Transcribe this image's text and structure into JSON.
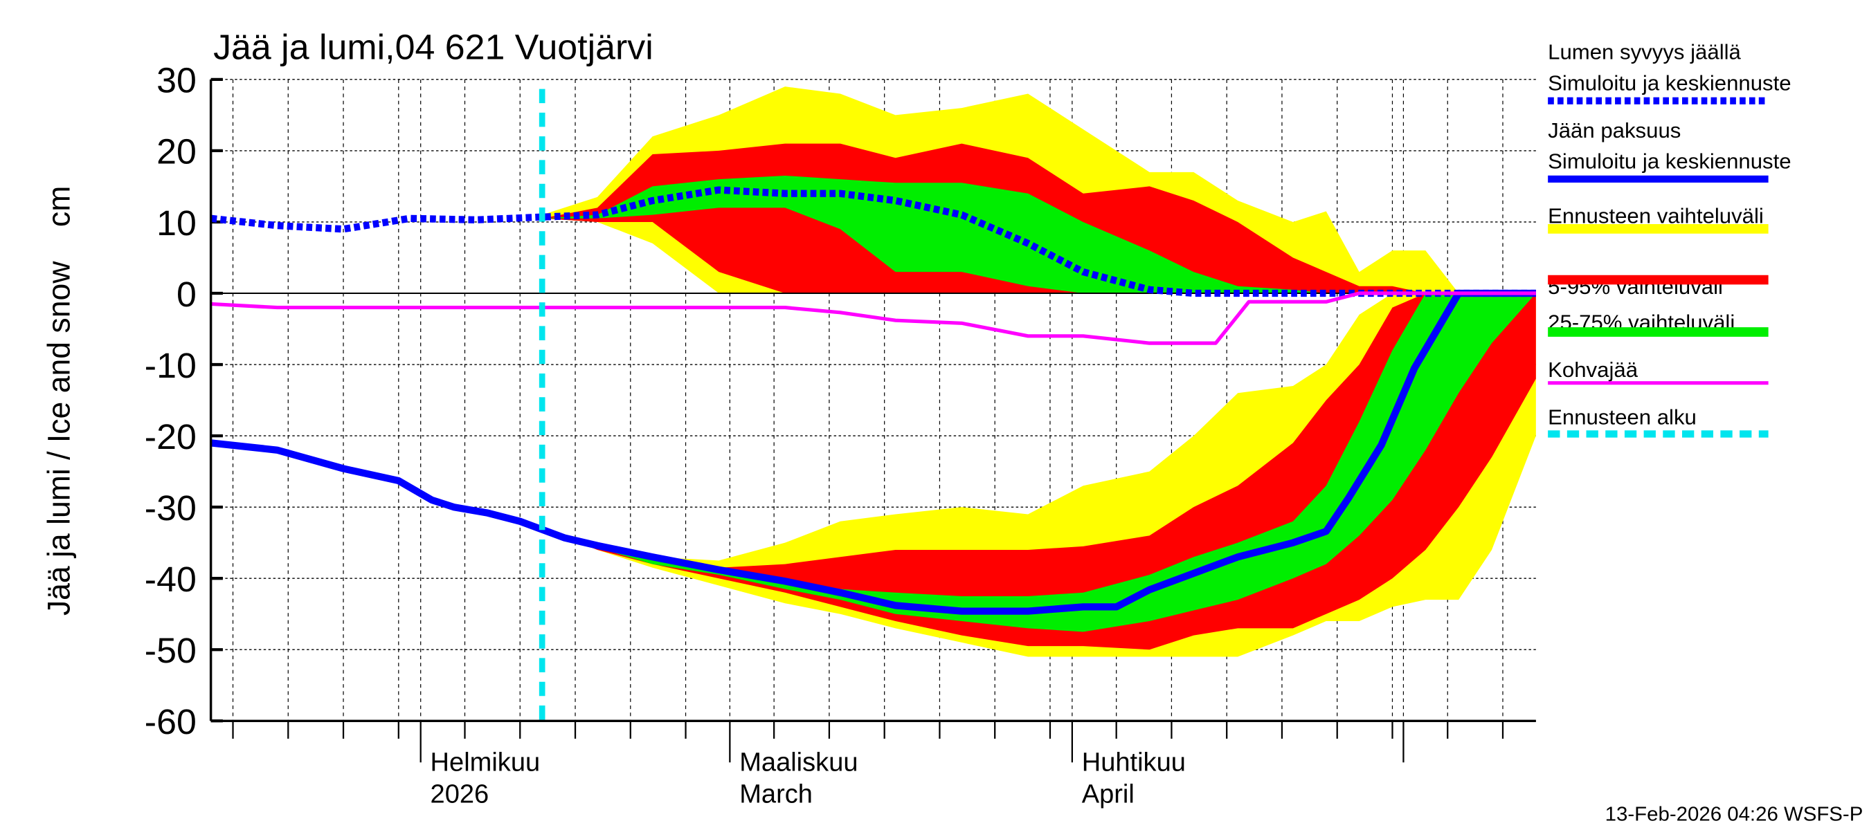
{
  "chart_data": {
    "type": "area",
    "title": "Jää ja lumi,04 621 Vuotjärvi",
    "ylabel": "Jää ja lumi / Ice and snow    cm",
    "ylim": [
      -60,
      30
    ],
    "yticks": [
      30,
      20,
      10,
      0,
      -10,
      -20,
      -30,
      -40,
      -50,
      -60
    ],
    "xlim": [
      "2026-01-13",
      "2026-05-13"
    ],
    "grid": true,
    "month_labels": [
      {
        "date": "2026-02-01",
        "line1": "Helmikuu",
        "line2": "2026"
      },
      {
        "date": "2026-03-01",
        "line1": "Maaliskuu",
        "line2": "March"
      },
      {
        "date": "2026-04-01",
        "line1": "Huhtikuu",
        "line2": "April"
      }
    ],
    "forecast_start": "2026-02-12",
    "band_dates": [
      "2026-02-12",
      "2026-02-17",
      "2026-02-22",
      "2026-02-28",
      "2026-03-06",
      "2026-03-11",
      "2026-03-16",
      "2026-03-22",
      "2026-03-28",
      "2026-04-02",
      "2026-04-08",
      "2026-04-12",
      "2026-04-16",
      "2026-04-21",
      "2026-04-24",
      "2026-04-27",
      "2026-04-30",
      "2026-05-03",
      "2026-05-06",
      "2026-05-09",
      "2026-05-13"
    ],
    "snow_bands": {
      "yellow_upper": [
        11,
        13.5,
        22,
        25,
        29,
        28,
        25,
        26,
        28,
        23,
        17,
        17,
        13,
        10,
        11.5,
        3,
        6,
        6,
        0,
        0,
        0
      ],
      "yellow_lower": [
        10.5,
        10,
        7,
        0,
        0,
        0,
        0,
        0,
        0,
        0,
        0,
        0,
        0,
        0,
        0,
        0,
        0,
        0,
        0,
        0,
        0
      ],
      "red_upper": [
        10.5,
        12,
        19.5,
        20,
        21,
        21,
        19,
        21,
        19,
        14,
        15,
        13,
        10,
        5,
        3,
        1,
        1,
        0,
        0,
        0,
        0
      ],
      "red_lower": [
        10.5,
        10,
        10,
        3,
        0,
        0,
        0,
        0,
        0,
        0,
        0,
        0,
        0,
        0,
        0,
        0,
        0,
        0,
        0,
        0,
        0
      ],
      "green_upper": [
        10.5,
        11,
        15,
        16,
        16.5,
        16,
        15.5,
        15.5,
        14,
        10,
        6,
        3,
        1,
        0.5,
        0,
        0,
        0,
        0,
        0,
        0,
        0
      ],
      "green_lower": [
        10.5,
        10.5,
        11,
        12,
        12,
        9,
        3,
        3,
        1,
        0,
        0,
        0,
        0,
        0,
        0,
        0,
        0,
        0,
        0,
        0,
        0
      ]
    },
    "ice_bands": {
      "yellow_upper": [
        -33,
        -35,
        -37,
        -37.5,
        -35,
        -32,
        -31,
        -30,
        -31,
        -27,
        -25,
        -20,
        -14,
        -13,
        -10,
        -3,
        0,
        0,
        0,
        0,
        0
      ],
      "yellow_lower": [
        -33,
        -36,
        -38.5,
        -41,
        -43.5,
        -45,
        -47,
        -49,
        -51,
        -51,
        -51,
        -51,
        -51,
        -48,
        -46,
        -46,
        -44,
        -43,
        -43,
        -36,
        -20
      ],
      "red_upper": [
        -33,
        -35.5,
        -37.5,
        -38.5,
        -38,
        -37,
        -36,
        -36,
        -36,
        -35.5,
        -34,
        -30,
        -27,
        -21,
        -15,
        -10,
        -2,
        0,
        0,
        0,
        0
      ],
      "red_lower": [
        -33,
        -36,
        -38,
        -40,
        -42,
        -44,
        -46,
        -48,
        -49.5,
        -49.5,
        -50,
        -48,
        -47,
        -47,
        -45,
        -43,
        -40,
        -36,
        -30,
        -23,
        -12
      ],
      "green_upper": [
        -33,
        -35.5,
        -37.5,
        -39,
        -40.5,
        -41.5,
        -42,
        -42.5,
        -42.5,
        -42,
        -39.5,
        -37,
        -35,
        -32,
        -27,
        -18,
        -8,
        0,
        0,
        0,
        0
      ],
      "green_lower": [
        -33,
        -35.7,
        -38,
        -39.5,
        -41.5,
        -43,
        -45,
        -46,
        -47,
        -47.5,
        -46,
        -44.5,
        -43,
        -40,
        -38,
        -34,
        -29,
        -22,
        -14,
        -7,
        0
      ]
    },
    "series": [
      {
        "name": "Lumen syvyys jäällä Simuloitu ja keskiennuste",
        "color": "#0000ff",
        "style": "dotted",
        "x": [
          "2026-01-13",
          "2026-01-19",
          "2026-01-25",
          "2026-01-31",
          "2026-02-06",
          "2026-02-12",
          "2026-02-17",
          "2026-02-22",
          "2026-02-28",
          "2026-03-06",
          "2026-03-11",
          "2026-03-16",
          "2026-03-22",
          "2026-03-28",
          "2026-04-02",
          "2026-04-08",
          "2026-04-12",
          "2026-05-13"
        ],
        "y": [
          10.5,
          9.5,
          9,
          10.5,
          10.3,
          10.7,
          11,
          13,
          14.5,
          14,
          14,
          13,
          11,
          7,
          3,
          0.5,
          0,
          0
        ]
      },
      {
        "name": "Jään paksuus Simuloitu ja keskiennuste",
        "color": "#0000ff",
        "style": "solid",
        "x": [
          "2026-01-13",
          "2026-01-19",
          "2026-01-25",
          "2026-01-30",
          "2026-02-02",
          "2026-02-04",
          "2026-02-07",
          "2026-02-10",
          "2026-02-14",
          "2026-02-17",
          "2026-02-22",
          "2026-02-28",
          "2026-03-06",
          "2026-03-11",
          "2026-03-16",
          "2026-03-22",
          "2026-03-28",
          "2026-04-02",
          "2026-04-05",
          "2026-04-08",
          "2026-04-12",
          "2026-04-16",
          "2026-04-21",
          "2026-04-24",
          "2026-04-26",
          "2026-04-29",
          "2026-05-02",
          "2026-05-06",
          "2026-05-13"
        ],
        "y": [
          -21,
          -22,
          -24.6,
          -26.3,
          -29,
          -30,
          -30.8,
          -32,
          -34.3,
          -35.4,
          -37,
          -38.8,
          -40.4,
          -42,
          -43.8,
          -44.6,
          -44.6,
          -44,
          -44,
          -41.6,
          -39.3,
          -37,
          -35,
          -33.4,
          -28.8,
          -21.3,
          -10.5,
          0,
          0
        ]
      },
      {
        "name": "Kohvajää",
        "color": "#ff00ff",
        "style": "solid",
        "x": [
          "2026-01-13",
          "2026-01-19",
          "2026-03-06",
          "2026-03-11",
          "2026-03-16",
          "2026-03-22",
          "2026-03-28",
          "2026-04-02",
          "2026-04-08",
          "2026-04-14",
          "2026-04-17",
          "2026-04-24",
          "2026-04-27",
          "2026-05-13"
        ],
        "y": [
          -1.5,
          -2,
          -2,
          -2.7,
          -3.8,
          -4.2,
          -6,
          -6,
          -7,
          -7,
          -1.2,
          -1.2,
          0,
          0
        ]
      }
    ],
    "legend": [
      {
        "line1": "Lumen syvyys jäällä",
        "line2": "Simuloitu ja keskiennuste",
        "color": "#0000ff",
        "style": "dotted"
      },
      {
        "line1": "Jään paksuus",
        "line2": "Simuloitu ja keskiennuste",
        "color": "#0000ff",
        "style": "solid"
      },
      {
        "line1": "Ennusteen vaihteluväli",
        "color": "#ffff00",
        "style": "band"
      },
      {
        "line1": "5-95% vaihteluväli",
        "color": "#ff0000",
        "style": "band"
      },
      {
        "line1": "25-75% vaihteluväli",
        "color": "#00ee00",
        "style": "band"
      },
      {
        "line1": "Kohvajää",
        "color": "#ff00ff",
        "style": "solid"
      },
      {
        "line1": "Ennusteen alku",
        "color": "#00e5ee",
        "style": "dashed"
      }
    ],
    "legend_position": "right",
    "footer": "13-Feb-2026 04:26 WSFS-P"
  }
}
